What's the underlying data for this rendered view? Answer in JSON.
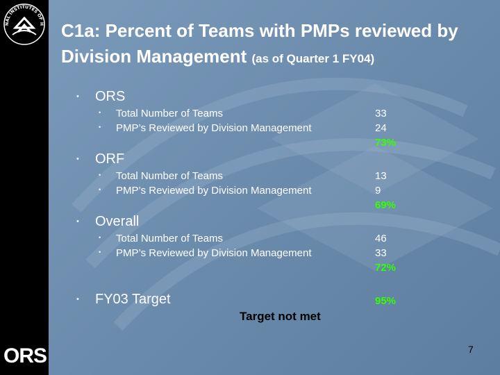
{
  "slide": {
    "title_main": "C1a:  Percent of Teams with PMPs reviewed by Division Management",
    "title_sub": "(as of Quarter 1 FY04)",
    "page_number": "7",
    "target_note": "Target not met"
  },
  "logos": {
    "nih_text": "NATIONAL INSTITUTES OF HEALTH",
    "ors_text": "ORS"
  },
  "sections": [
    {
      "label": "ORS",
      "items": [
        {
          "label": "Total Number of Teams",
          "value": "33"
        },
        {
          "label": "PMP’s Reviewed by Division Management",
          "value": "24"
        }
      ],
      "percent": "73%"
    },
    {
      "label": "ORF",
      "items": [
        {
          "label": "Total Number of Teams",
          "value": "13"
        },
        {
          "label": "PMP’s Reviewed by Division Management",
          "value": "9"
        }
      ],
      "percent": "69%"
    },
    {
      "label": "Overall",
      "items": [
        {
          "label": "Total Number of Teams",
          "value": "46"
        },
        {
          "label": "PMP’s Reviewed by Division Management",
          "value": "33"
        }
      ],
      "percent": "72%"
    },
    {
      "label": "FY03 Target",
      "percent": "95%"
    }
  ],
  "colors": {
    "background": "#6f8fb0",
    "sidebar": "#000000",
    "percent_green": "#33ff00",
    "text": "#ffffff"
  }
}
